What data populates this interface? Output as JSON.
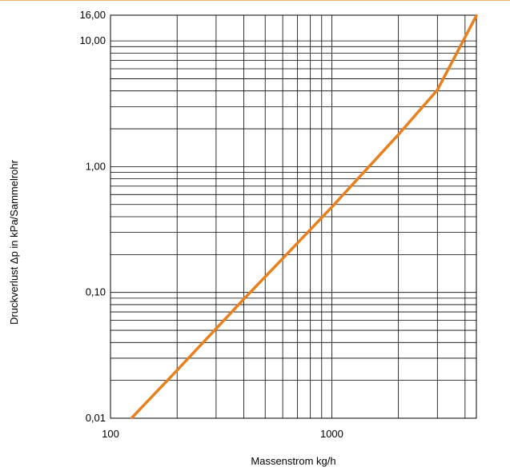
{
  "colors": {
    "line": "#e8801e",
    "top_rule": "#f0b070",
    "grid": "#000000"
  },
  "chart_data": {
    "type": "line",
    "x_scale": "log",
    "y_scale": "log",
    "xlabel": "Massenstrom kg/h",
    "ylabel": "Druckverlust Δp in kPa/Sammelrohr",
    "xlim": [
      100,
      4500
    ],
    "ylim": [
      0.01,
      16
    ],
    "grid": true,
    "x_ticks": [
      {
        "value": 100,
        "label": "100"
      },
      {
        "value": 1000,
        "label": "1000"
      }
    ],
    "y_ticks": [
      {
        "value": 0.01,
        "label": "0,01"
      },
      {
        "value": 0.1,
        "label": "0,10"
      },
      {
        "value": 1,
        "label": "1,00"
      },
      {
        "value": 10,
        "label": "10,00"
      },
      {
        "value": 16,
        "label": "16,00"
      }
    ],
    "series": [
      {
        "x": [
          125,
          200,
          300,
          400,
          600,
          1000,
          2000,
          3000,
          4500
        ],
        "y": [
          0.0101,
          0.0241,
          0.0515,
          0.0884,
          0.186,
          0.477,
          1.8,
          4.07,
          15.85
        ]
      }
    ]
  }
}
